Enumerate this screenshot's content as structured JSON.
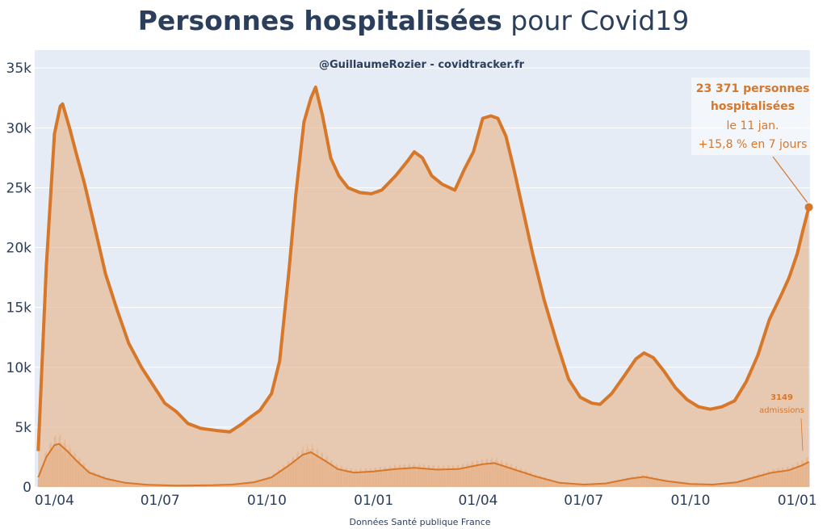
{
  "title": {
    "bold": "Personnes hospitalisées",
    "rest": " pour Covid19"
  },
  "credit": "@GuillaumeRozier - covidtracker.fr",
  "source": "Données Santé publique France",
  "colors": {
    "plot_bg": "#e5ecf6",
    "line": "#d6772a",
    "fill": "#e8b58c",
    "text": "#2b3f5c"
  },
  "annotation": {
    "line1": "23 371 personnes",
    "line2": "hospitalisées",
    "line3": "le 11 jan.",
    "line4": "+15,8 % en 7 jours"
  },
  "admissions_annotation": {
    "value": "3149",
    "label": "admissions"
  },
  "chart_data": {
    "type": "area",
    "ylim": [
      0,
      36500
    ],
    "y_ticks": [
      {
        "value": 0,
        "label": "0"
      },
      {
        "value": 5000,
        "label": "5k"
      },
      {
        "value": 10000,
        "label": "10k"
      },
      {
        "value": 15000,
        "label": "15k"
      },
      {
        "value": 20000,
        "label": "20k"
      },
      {
        "value": 25000,
        "label": "25k"
      },
      {
        "value": 30000,
        "label": "30k"
      },
      {
        "value": 35000,
        "label": "35k"
      }
    ],
    "x_range": [
      "2020-03-15",
      "2022-01-12"
    ],
    "x_ticks": [
      {
        "date": "2020-04-01",
        "label": "01/04"
      },
      {
        "date": "2020-07-01",
        "label": "01/07"
      },
      {
        "date": "2020-10-01",
        "label": "01/10"
      },
      {
        "date": "2021-01-01",
        "label": "01/01"
      },
      {
        "date": "2021-04-01",
        "label": "01/04"
      },
      {
        "date": "2021-07-01",
        "label": "01/07"
      },
      {
        "date": "2021-10-01",
        "label": "01/10"
      },
      {
        "date": "2022-01-01",
        "label": "01/01"
      }
    ],
    "grid": true,
    "series": [
      {
        "key": "hospitalisations",
        "points": [
          [
            "2020-03-18",
            3000
          ],
          [
            "2020-03-25",
            18500
          ],
          [
            "2020-04-01",
            29500
          ],
          [
            "2020-04-06",
            31800
          ],
          [
            "2020-04-08",
            32000
          ],
          [
            "2020-04-14",
            30000
          ],
          [
            "2020-04-20",
            27800
          ],
          [
            "2020-04-27",
            25300
          ],
          [
            "2020-05-05",
            22000
          ],
          [
            "2020-05-15",
            17800
          ],
          [
            "2020-05-25",
            14800
          ],
          [
            "2020-06-04",
            12000
          ],
          [
            "2020-06-15",
            10000
          ],
          [
            "2020-06-25",
            8500
          ],
          [
            "2020-07-05",
            7000
          ],
          [
            "2020-07-15",
            6300
          ],
          [
            "2020-07-25",
            5300
          ],
          [
            "2020-08-05",
            4900
          ],
          [
            "2020-08-20",
            4700
          ],
          [
            "2020-08-30",
            4600
          ],
          [
            "2020-09-10",
            5300
          ],
          [
            "2020-09-15",
            5700
          ],
          [
            "2020-09-25",
            6400
          ],
          [
            "2020-10-05",
            7800
          ],
          [
            "2020-10-12",
            10500
          ],
          [
            "2020-10-20",
            18000
          ],
          [
            "2020-10-26",
            24500
          ],
          [
            "2020-11-02",
            30500
          ],
          [
            "2020-11-08",
            32500
          ],
          [
            "2020-11-12",
            33400
          ],
          [
            "2020-11-18",
            31000
          ],
          [
            "2020-11-25",
            27500
          ],
          [
            "2020-12-02",
            26000
          ],
          [
            "2020-12-10",
            25000
          ],
          [
            "2020-12-20",
            24600
          ],
          [
            "2020-12-30",
            24500
          ],
          [
            "2021-01-08",
            24800
          ],
          [
            "2021-01-20",
            26000
          ],
          [
            "2021-01-30",
            27200
          ],
          [
            "2021-02-05",
            28000
          ],
          [
            "2021-02-12",
            27500
          ],
          [
            "2021-02-20",
            26000
          ],
          [
            "2021-03-01",
            25300
          ],
          [
            "2021-03-12",
            24800
          ],
          [
            "2021-03-20",
            26500
          ],
          [
            "2021-03-28",
            28000
          ],
          [
            "2021-04-05",
            30800
          ],
          [
            "2021-04-12",
            31000
          ],
          [
            "2021-04-18",
            30800
          ],
          [
            "2021-04-25",
            29300
          ],
          [
            "2021-05-02",
            26500
          ],
          [
            "2021-05-10",
            23000
          ],
          [
            "2021-05-18",
            19500
          ],
          [
            "2021-05-28",
            15600
          ],
          [
            "2021-06-08",
            12000
          ],
          [
            "2021-06-18",
            9000
          ],
          [
            "2021-06-28",
            7500
          ],
          [
            "2021-07-08",
            7000
          ],
          [
            "2021-07-15",
            6900
          ],
          [
            "2021-07-25",
            7800
          ],
          [
            "2021-08-05",
            9300
          ],
          [
            "2021-08-15",
            10700
          ],
          [
            "2021-08-22",
            11200
          ],
          [
            "2021-08-30",
            10800
          ],
          [
            "2021-09-08",
            9700
          ],
          [
            "2021-09-18",
            8300
          ],
          [
            "2021-09-28",
            7300
          ],
          [
            "2021-10-08",
            6700
          ],
          [
            "2021-10-18",
            6500
          ],
          [
            "2021-10-28",
            6700
          ],
          [
            "2021-11-08",
            7200
          ],
          [
            "2021-11-18",
            8800
          ],
          [
            "2021-11-28",
            11000
          ],
          [
            "2021-12-08",
            14000
          ],
          [
            "2021-12-18",
            16000
          ],
          [
            "2021-12-25",
            17500
          ],
          [
            "2022-01-01",
            19500
          ],
          [
            "2022-01-06",
            21500
          ],
          [
            "2022-01-11",
            23371
          ]
        ]
      },
      {
        "key": "admissions",
        "points": [
          [
            "2020-03-18",
            800
          ],
          [
            "2020-03-25",
            2500
          ],
          [
            "2020-04-01",
            3500
          ],
          [
            "2020-04-05",
            3600
          ],
          [
            "2020-04-12",
            3000
          ],
          [
            "2020-04-20",
            2200
          ],
          [
            "2020-05-01",
            1200
          ],
          [
            "2020-05-15",
            700
          ],
          [
            "2020-06-01",
            350
          ],
          [
            "2020-06-20",
            180
          ],
          [
            "2020-07-15",
            120
          ],
          [
            "2020-08-15",
            150
          ],
          [
            "2020-09-01",
            200
          ],
          [
            "2020-09-20",
            400
          ],
          [
            "2020-10-05",
            800
          ],
          [
            "2020-10-20",
            1800
          ],
          [
            "2020-11-01",
            2700
          ],
          [
            "2020-11-08",
            2900
          ],
          [
            "2020-11-20",
            2200
          ],
          [
            "2020-12-01",
            1500
          ],
          [
            "2020-12-15",
            1200
          ],
          [
            "2021-01-01",
            1300
          ],
          [
            "2021-01-20",
            1500
          ],
          [
            "2021-02-05",
            1600
          ],
          [
            "2021-02-25",
            1450
          ],
          [
            "2021-03-15",
            1500
          ],
          [
            "2021-04-05",
            1900
          ],
          [
            "2021-04-15",
            2000
          ],
          [
            "2021-05-01",
            1500
          ],
          [
            "2021-05-20",
            900
          ],
          [
            "2021-06-10",
            350
          ],
          [
            "2021-07-01",
            200
          ],
          [
            "2021-07-20",
            300
          ],
          [
            "2021-08-10",
            700
          ],
          [
            "2021-08-22",
            850
          ],
          [
            "2021-09-10",
            500
          ],
          [
            "2021-10-01",
            250
          ],
          [
            "2021-10-20",
            200
          ],
          [
            "2021-11-10",
            400
          ],
          [
            "2021-11-25",
            800
          ],
          [
            "2021-12-10",
            1200
          ],
          [
            "2021-12-25",
            1400
          ],
          [
            "2022-01-05",
            1800
          ],
          [
            "2022-01-11",
            2100
          ]
        ]
      }
    ],
    "last_point": {
      "date": "2022-01-11",
      "value": 23371
    }
  }
}
